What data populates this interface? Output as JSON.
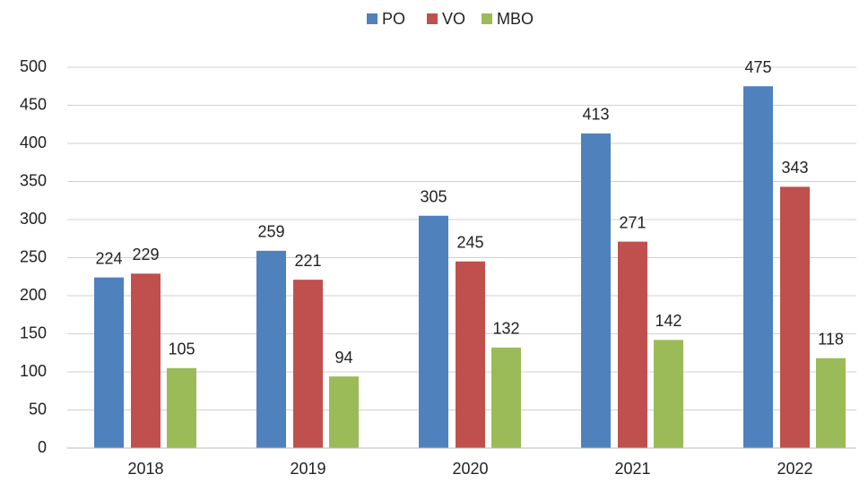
{
  "chart_data": {
    "type": "bar",
    "categories": [
      "2018",
      "2019",
      "2020",
      "2021",
      "2022"
    ],
    "series": [
      {
        "name": "PO",
        "color": "#4f81bd",
        "values": [
          224,
          259,
          305,
          413,
          475
        ]
      },
      {
        "name": "VO",
        "color": "#c0504d",
        "values": [
          229,
          221,
          245,
          271,
          343
        ]
      },
      {
        "name": "MBO",
        "color": "#9bbb59",
        "values": [
          105,
          94,
          132,
          142,
          118
        ]
      }
    ],
    "ylim": [
      0,
      500
    ],
    "yticks": [
      0,
      50,
      100,
      150,
      200,
      250,
      300,
      350,
      400,
      450,
      500
    ],
    "grid": true,
    "legend": "top"
  }
}
